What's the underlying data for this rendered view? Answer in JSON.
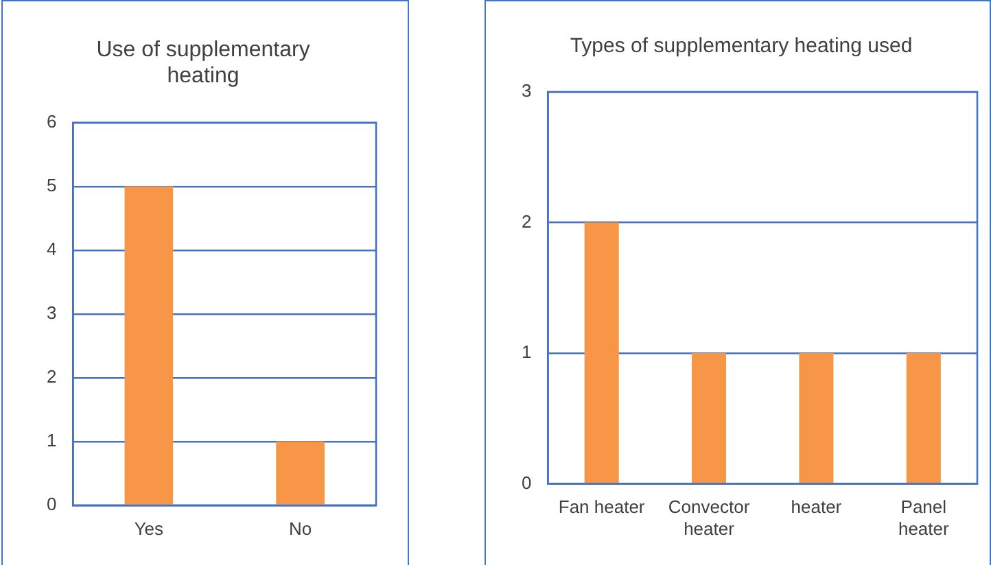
{
  "chart_data": [
    {
      "type": "bar",
      "title": "Use of supplementary heating",
      "categories": [
        "Yes",
        "No"
      ],
      "values": [
        5,
        1
      ],
      "color": "#f79646",
      "ylim": [
        0,
        6
      ],
      "yticks": [
        0,
        1,
        2,
        3,
        4,
        5,
        6
      ],
      "grid": "y",
      "legend": false
    },
    {
      "type": "bar",
      "title": "Types of supplementary heating used",
      "categories": [
        "Fan heater",
        "Convector heater",
        "heater",
        "Panel heater"
      ],
      "values": [
        2,
        1,
        1,
        1
      ],
      "color": "#f79646",
      "ylim": [
        0,
        3
      ],
      "yticks": [
        0,
        1,
        2,
        3
      ],
      "grid": "y",
      "legend": false
    }
  ]
}
